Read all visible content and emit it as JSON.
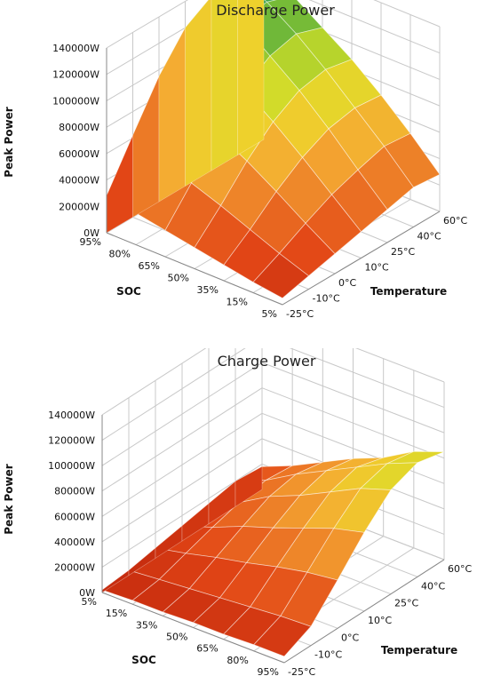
{
  "chart_data": [
    {
      "type": "surface3d",
      "title": "Discharge Power",
      "zlabel": "Peak Power",
      "xlabel": "SOC",
      "ylabel": "Temperature",
      "z_ticks": [
        "0W",
        "20000W",
        "40000W",
        "60000W",
        "80000W",
        "100000W",
        "120000W",
        "140000W"
      ],
      "zlim": [
        0,
        140000
      ],
      "soc_ticks": [
        "95%",
        "80%",
        "65%",
        "50%",
        "35%",
        "15%",
        "5%"
      ],
      "temp_ticks": [
        "-25°C",
        "-10°C",
        "0°C",
        "10°C",
        "25°C",
        "40°C",
        "60°C"
      ],
      "soc": [
        95,
        80,
        65,
        50,
        35,
        15,
        5
      ],
      "temperature": [
        -25,
        -10,
        0,
        10,
        25,
        40,
        60
      ],
      "values": [
        [
          28000,
          62000,
          95000,
          120000,
          132000,
          135000,
          125000
        ],
        [
          24000,
          52000,
          82000,
          108000,
          122000,
          125000,
          118000
        ],
        [
          20000,
          44000,
          70000,
          92000,
          105000,
          110000,
          103000
        ],
        [
          16000,
          36000,
          58000,
          76000,
          88000,
          92000,
          88000
        ],
        [
          12000,
          27000,
          44000,
          58000,
          68000,
          72000,
          70000
        ],
        [
          8000,
          18000,
          29000,
          39000,
          46000,
          52000,
          50000
        ],
        [
          5000,
          10000,
          15000,
          20000,
          25000,
          30000,
          28000
        ]
      ]
    },
    {
      "type": "surface3d",
      "title": "Charge Power",
      "zlabel": "Peak Power",
      "xlabel": "SOC",
      "ylabel": "Temperature",
      "z_ticks": [
        "0W",
        "20000W",
        "40000W",
        "60000W",
        "80000W",
        "100000W",
        "120000W",
        "140000W"
      ],
      "zlim": [
        0,
        140000
      ],
      "soc_ticks": [
        "5%",
        "15%",
        "35%",
        "50%",
        "65%",
        "80%",
        "95%"
      ],
      "temp_ticks": [
        "-25°C",
        "-10°C",
        "0°C",
        "10°C",
        "25°C",
        "40°C",
        "60°C"
      ],
      "soc": [
        5,
        15,
        35,
        50,
        65,
        80,
        95
      ],
      "temperature": [
        -25,
        -10,
        0,
        10,
        25,
        40,
        60
      ],
      "values": [
        [
          5000,
          15000,
          38000,
          62000,
          82000,
          90000,
          85000
        ],
        [
          5000,
          14000,
          35000,
          56000,
          74000,
          80000,
          76000
        ],
        [
          4000,
          12000,
          30000,
          47000,
          62000,
          68000,
          62000
        ],
        [
          4000,
          10000,
          24000,
          38000,
          50000,
          56000,
          52000
        ],
        [
          3000,
          8000,
          19000,
          30000,
          40000,
          44000,
          40000
        ],
        [
          3000,
          6000,
          13000,
          20000,
          26000,
          30000,
          28000
        ],
        [
          2000,
          4000,
          8000,
          12000,
          16000,
          20000,
          18000
        ]
      ]
    }
  ]
}
